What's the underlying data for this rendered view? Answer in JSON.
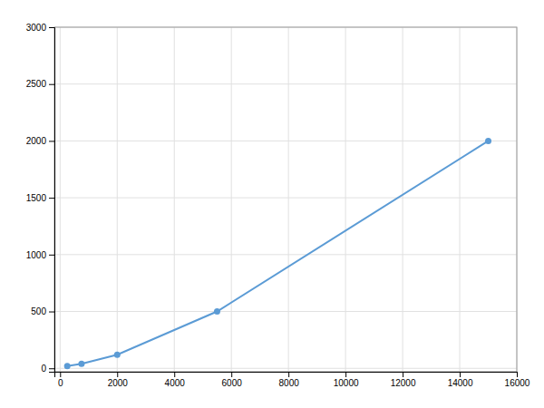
{
  "chart_data": {
    "type": "line",
    "x": [
      250,
      750,
      2000,
      5500,
      15000
    ],
    "values": [
      20,
      40,
      120,
      500,
      2000
    ],
    "color": "#5b9bd5",
    "marker": "circle",
    "xlim": [
      -200,
      16000
    ],
    "ylim": [
      -30,
      3000
    ],
    "xticks": [
      0,
      2000,
      4000,
      6000,
      8000,
      10000,
      12000,
      14000,
      16000
    ],
    "yticks": [
      0,
      500,
      1000,
      1500,
      2000,
      2500,
      3000
    ],
    "grid": true
  }
}
